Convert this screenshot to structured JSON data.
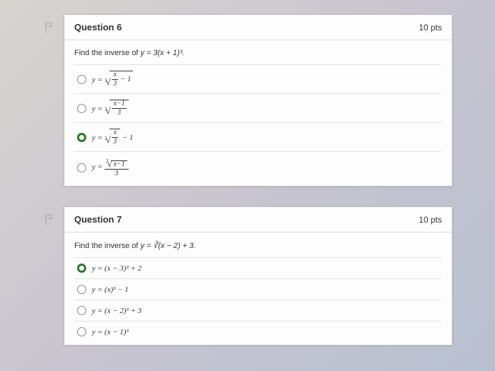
{
  "questions": [
    {
      "flag": "flag-outline",
      "title": "Question 6",
      "points": "10 pts",
      "prompt_pre": "Find the inverse of ",
      "prompt_math": "y = 3(x + 1)³.",
      "options": [
        {
          "selected": false,
          "html": "y = <span class='root'><span class='deg'>3</span><span class='surd'>√</span><span class='rad'><span class='frac'><span class='n'>x</span><span class='d'>3</span></span> − 1</span></span>"
        },
        {
          "selected": false,
          "html": "y = <span class='root'><span class='deg'>3</span><span class='surd'>√</span><span class='rad'><span class='frac'><span class='n'>x−1</span><span class='d'>3</span></span></span></span>"
        },
        {
          "selected": true,
          "html": "y = <span class='root'><span class='deg'>3</span><span class='surd'>√</span><span class='rad'><span class='frac'><span class='n'>x</span><span class='d'>3</span></span></span></span> − 1"
        },
        {
          "selected": false,
          "html": "y = <span class='frac'><span class='n'><span class='root'><span class='deg'>3</span><span class='surd'>√</span><span class='rad'>x−1</span></span></span><span class='d'>3</span></span>"
        }
      ]
    },
    {
      "flag": "flag-outline",
      "title": "Question 7",
      "points": "10 pts",
      "prompt_pre": "Find the inverse of ",
      "prompt_math": "y = ∛(x − 2) + 3.",
      "options": [
        {
          "selected": true,
          "html": "y = (x − 3)³ + 2"
        },
        {
          "selected": false,
          "html": "y = (x)³ − 1"
        },
        {
          "selected": false,
          "html": "y = (x − 2)³ + 3"
        },
        {
          "selected": false,
          "html": "y = (x − 1)³"
        }
      ]
    }
  ]
}
